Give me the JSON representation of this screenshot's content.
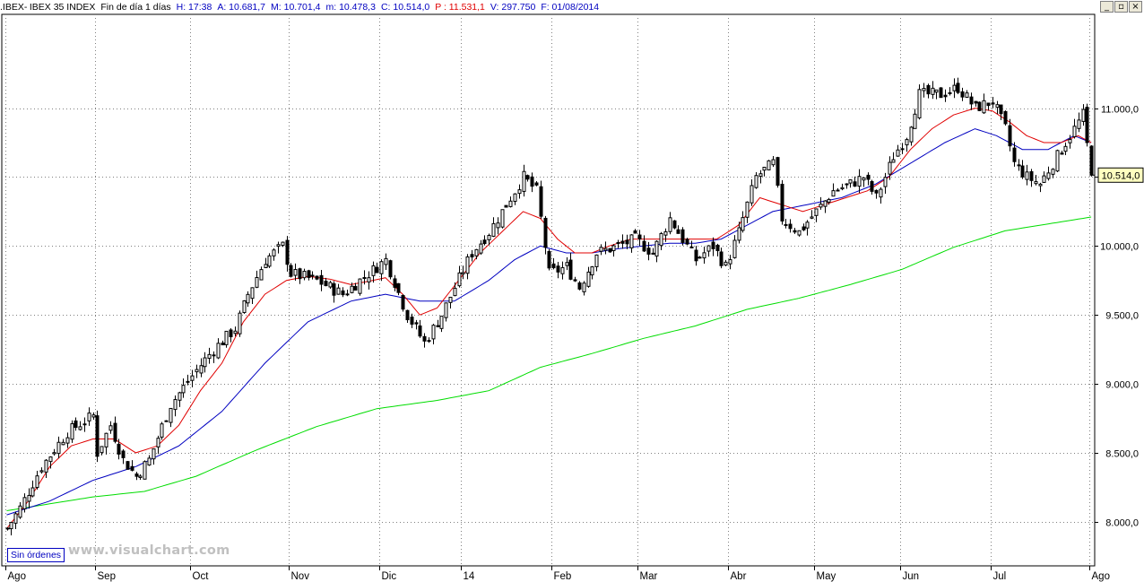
{
  "header": {
    "symbol": ".IBEX",
    "name": "IBEX 35 INDEX",
    "period": "Fin de día 1 días",
    "time": "H: 17:38",
    "open": "A: 10.681,7",
    "high": "M: 10.701,4",
    "low": "m: 10.478,3",
    "close": "C: 10.514,0",
    "p_value": "P : 11.531,1",
    "volume": "V: 297.750",
    "date": "F: 01/08/2014"
  },
  "window_controls": [
    "_",
    "▫",
    "×"
  ],
  "status_button": "Sin órdenes",
  "watermark": "www.visualchart.com",
  "colors": {
    "ma_red": "#e00000",
    "ma_blue": "#0000c0",
    "ma_green": "#00dd00",
    "candles": "#000000",
    "grid": "#808080",
    "price_tag_bg": "#ffffc0",
    "header_blue": "#0000c0",
    "header_red": "#e00000"
  },
  "chart_data": {
    "type": "candlestick",
    "y_ticks": [
      "8.000,0",
      "8.500,0",
      "9.000,0",
      "9.500,0",
      "10.000,0",
      "10.500,0",
      "11.000,0"
    ],
    "y_tick_values": [
      8000,
      8500,
      9000,
      9500,
      10000,
      10500,
      11000
    ],
    "ylim": [
      7680,
      11680
    ],
    "last_price_label": "10.514,0",
    "last_price": 10514,
    "x_labels": [
      "Ago",
      "Sep",
      "Oct",
      "Nov",
      "Dic",
      "14",
      "Feb",
      "Mar",
      "Abr",
      "May",
      "Jun",
      "Jul",
      "Ago"
    ],
    "x_label_day_index": [
      0,
      21,
      43,
      66,
      87,
      106,
      127,
      147,
      168,
      188,
      208,
      229,
      252
    ],
    "grid": true,
    "series": [
      {
        "kind": "close",
        "anchors": [
          [
            0,
            7950
          ],
          [
            3,
            8100
          ],
          [
            8,
            8400
          ],
          [
            14,
            8650
          ],
          [
            20,
            8770
          ],
          [
            21,
            8500
          ],
          [
            24,
            8700
          ],
          [
            27,
            8450
          ],
          [
            30,
            8330
          ],
          [
            33,
            8450
          ],
          [
            38,
            8850
          ],
          [
            44,
            9100
          ],
          [
            48,
            9250
          ],
          [
            53,
            9400
          ],
          [
            56,
            9650
          ],
          [
            60,
            9900
          ],
          [
            64,
            10000
          ],
          [
            66,
            9800
          ],
          [
            72,
            9750
          ],
          [
            78,
            9650
          ],
          [
            84,
            9800
          ],
          [
            88,
            9900
          ],
          [
            93,
            9500
          ],
          [
            97,
            9300
          ],
          [
            101,
            9500
          ],
          [
            104,
            9700
          ],
          [
            108,
            9950
          ],
          [
            112,
            10100
          ],
          [
            116,
            10300
          ],
          [
            120,
            10500
          ],
          [
            123,
            10400
          ],
          [
            126,
            9800
          ],
          [
            130,
            9850
          ],
          [
            133,
            9700
          ],
          [
            137,
            9950
          ],
          [
            142,
            10000
          ],
          [
            146,
            10050
          ],
          [
            150,
            9950
          ],
          [
            154,
            10200
          ],
          [
            157,
            10050
          ],
          [
            160,
            9900
          ],
          [
            164,
            10000
          ],
          [
            167,
            9850
          ],
          [
            170,
            10100
          ],
          [
            174,
            10500
          ],
          [
            178,
            10600
          ],
          [
            180,
            10200
          ],
          [
            184,
            10100
          ],
          [
            188,
            10250
          ],
          [
            192,
            10400
          ],
          [
            196,
            10450
          ],
          [
            199,
            10500
          ],
          [
            202,
            10350
          ],
          [
            206,
            10650
          ],
          [
            209,
            10800
          ],
          [
            212,
            11100
          ],
          [
            217,
            11100
          ],
          [
            221,
            11150
          ],
          [
            225,
            11000
          ],
          [
            229,
            11050
          ],
          [
            232,
            10850
          ],
          [
            234,
            10600
          ],
          [
            237,
            10500
          ],
          [
            240,
            10450
          ],
          [
            243,
            10600
          ],
          [
            246,
            10750
          ],
          [
            250,
            10950
          ],
          [
            252,
            10514
          ]
        ]
      },
      {
        "kind": "ma_red",
        "anchors": [
          [
            0,
            7950
          ],
          [
            5,
            8150
          ],
          [
            10,
            8400
          ],
          [
            15,
            8550
          ],
          [
            20,
            8600
          ],
          [
            25,
            8600
          ],
          [
            30,
            8500
          ],
          [
            35,
            8550
          ],
          [
            40,
            8700
          ],
          [
            45,
            8950
          ],
          [
            50,
            9150
          ],
          [
            55,
            9450
          ],
          [
            60,
            9650
          ],
          [
            65,
            9750
          ],
          [
            70,
            9780
          ],
          [
            75,
            9760
          ],
          [
            80,
            9720
          ],
          [
            85,
            9750
          ],
          [
            88,
            9770
          ],
          [
            92,
            9650
          ],
          [
            96,
            9500
          ],
          [
            100,
            9550
          ],
          [
            105,
            9750
          ],
          [
            110,
            9950
          ],
          [
            115,
            10100
          ],
          [
            120,
            10250
          ],
          [
            124,
            10200
          ],
          [
            128,
            10050
          ],
          [
            132,
            9950
          ],
          [
            136,
            9950
          ],
          [
            140,
            10000
          ],
          [
            145,
            10050
          ],
          [
            150,
            10050
          ],
          [
            155,
            10050
          ],
          [
            160,
            10050
          ],
          [
            165,
            10050
          ],
          [
            170,
            10150
          ],
          [
            175,
            10350
          ],
          [
            180,
            10300
          ],
          [
            185,
            10250
          ],
          [
            190,
            10300
          ],
          [
            195,
            10350
          ],
          [
            200,
            10400
          ],
          [
            205,
            10500
          ],
          [
            210,
            10700
          ],
          [
            215,
            10850
          ],
          [
            220,
            10950
          ],
          [
            225,
            11000
          ],
          [
            229,
            10980
          ],
          [
            233,
            10900
          ],
          [
            237,
            10800
          ],
          [
            241,
            10750
          ],
          [
            245,
            10750
          ],
          [
            249,
            10800
          ],
          [
            252,
            10750
          ]
        ]
      },
      {
        "kind": "ma_blue",
        "anchors": [
          [
            0,
            8050
          ],
          [
            10,
            8150
          ],
          [
            20,
            8300
          ],
          [
            30,
            8400
          ],
          [
            40,
            8550
          ],
          [
            50,
            8800
          ],
          [
            60,
            9150
          ],
          [
            70,
            9450
          ],
          [
            80,
            9600
          ],
          [
            88,
            9650
          ],
          [
            96,
            9600
          ],
          [
            104,
            9600
          ],
          [
            112,
            9750
          ],
          [
            118,
            9900
          ],
          [
            124,
            10000
          ],
          [
            130,
            9950
          ],
          [
            136,
            9950
          ],
          [
            142,
            9980
          ],
          [
            148,
            10000
          ],
          [
            154,
            10020
          ],
          [
            160,
            10020
          ],
          [
            166,
            10050
          ],
          [
            172,
            10150
          ],
          [
            178,
            10250
          ],
          [
            186,
            10300
          ],
          [
            194,
            10350
          ],
          [
            202,
            10450
          ],
          [
            210,
            10600
          ],
          [
            218,
            10750
          ],
          [
            225,
            10850
          ],
          [
            230,
            10800
          ],
          [
            236,
            10700
          ],
          [
            242,
            10700
          ],
          [
            248,
            10800
          ],
          [
            252,
            10750
          ]
        ]
      },
      {
        "kind": "ma_green",
        "anchors": [
          [
            0,
            8080
          ],
          [
            10,
            8130
          ],
          [
            20,
            8180
          ],
          [
            32,
            8220
          ],
          [
            44,
            8330
          ],
          [
            58,
            8520
          ],
          [
            72,
            8690
          ],
          [
            86,
            8820
          ],
          [
            100,
            8880
          ],
          [
            112,
            8950
          ],
          [
            124,
            9120
          ],
          [
            136,
            9220
          ],
          [
            148,
            9330
          ],
          [
            160,
            9420
          ],
          [
            172,
            9540
          ],
          [
            184,
            9620
          ],
          [
            196,
            9720
          ],
          [
            208,
            9830
          ],
          [
            220,
            9990
          ],
          [
            232,
            10110
          ],
          [
            244,
            10170
          ],
          [
            252,
            10210
          ]
        ]
      }
    ]
  }
}
